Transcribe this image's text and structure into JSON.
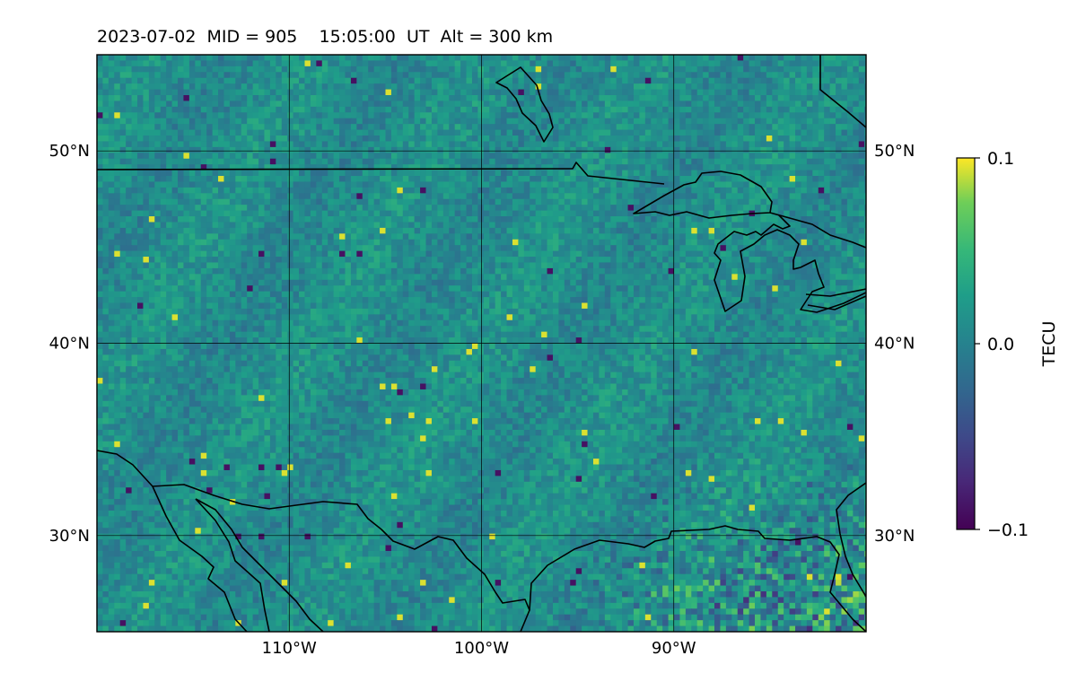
{
  "title": "2023-07-02  MID = 905    15:05:00  UT  Alt = 300 km",
  "map": {
    "lon_range": [
      -120,
      -80
    ],
    "lat_range": [
      25,
      55
    ],
    "lat_ticks": [
      {
        "value": 30,
        "label": "30°N"
      },
      {
        "value": 40,
        "label": "40°N"
      },
      {
        "value": 50,
        "label": "50°N"
      }
    ],
    "lon_ticks": [
      {
        "value": -110,
        "label": "110°W"
      },
      {
        "value": -100,
        "label": "100°W"
      },
      {
        "value": -90,
        "label": "90°W"
      }
    ],
    "gridlines": true,
    "colormap": "viridis",
    "colors": {
      "low": "#440154",
      "mid": "#21908d",
      "high": "#fde725",
      "coastline": "#000000"
    }
  },
  "colorbar": {
    "label": "TECU",
    "min": -0.1,
    "max": 0.1,
    "ticks": [
      {
        "value": 0.1,
        "label": "0.1"
      },
      {
        "value": 0.0,
        "label": "0.0"
      },
      {
        "value": -0.1,
        "label": "−0.1"
      }
    ]
  }
}
